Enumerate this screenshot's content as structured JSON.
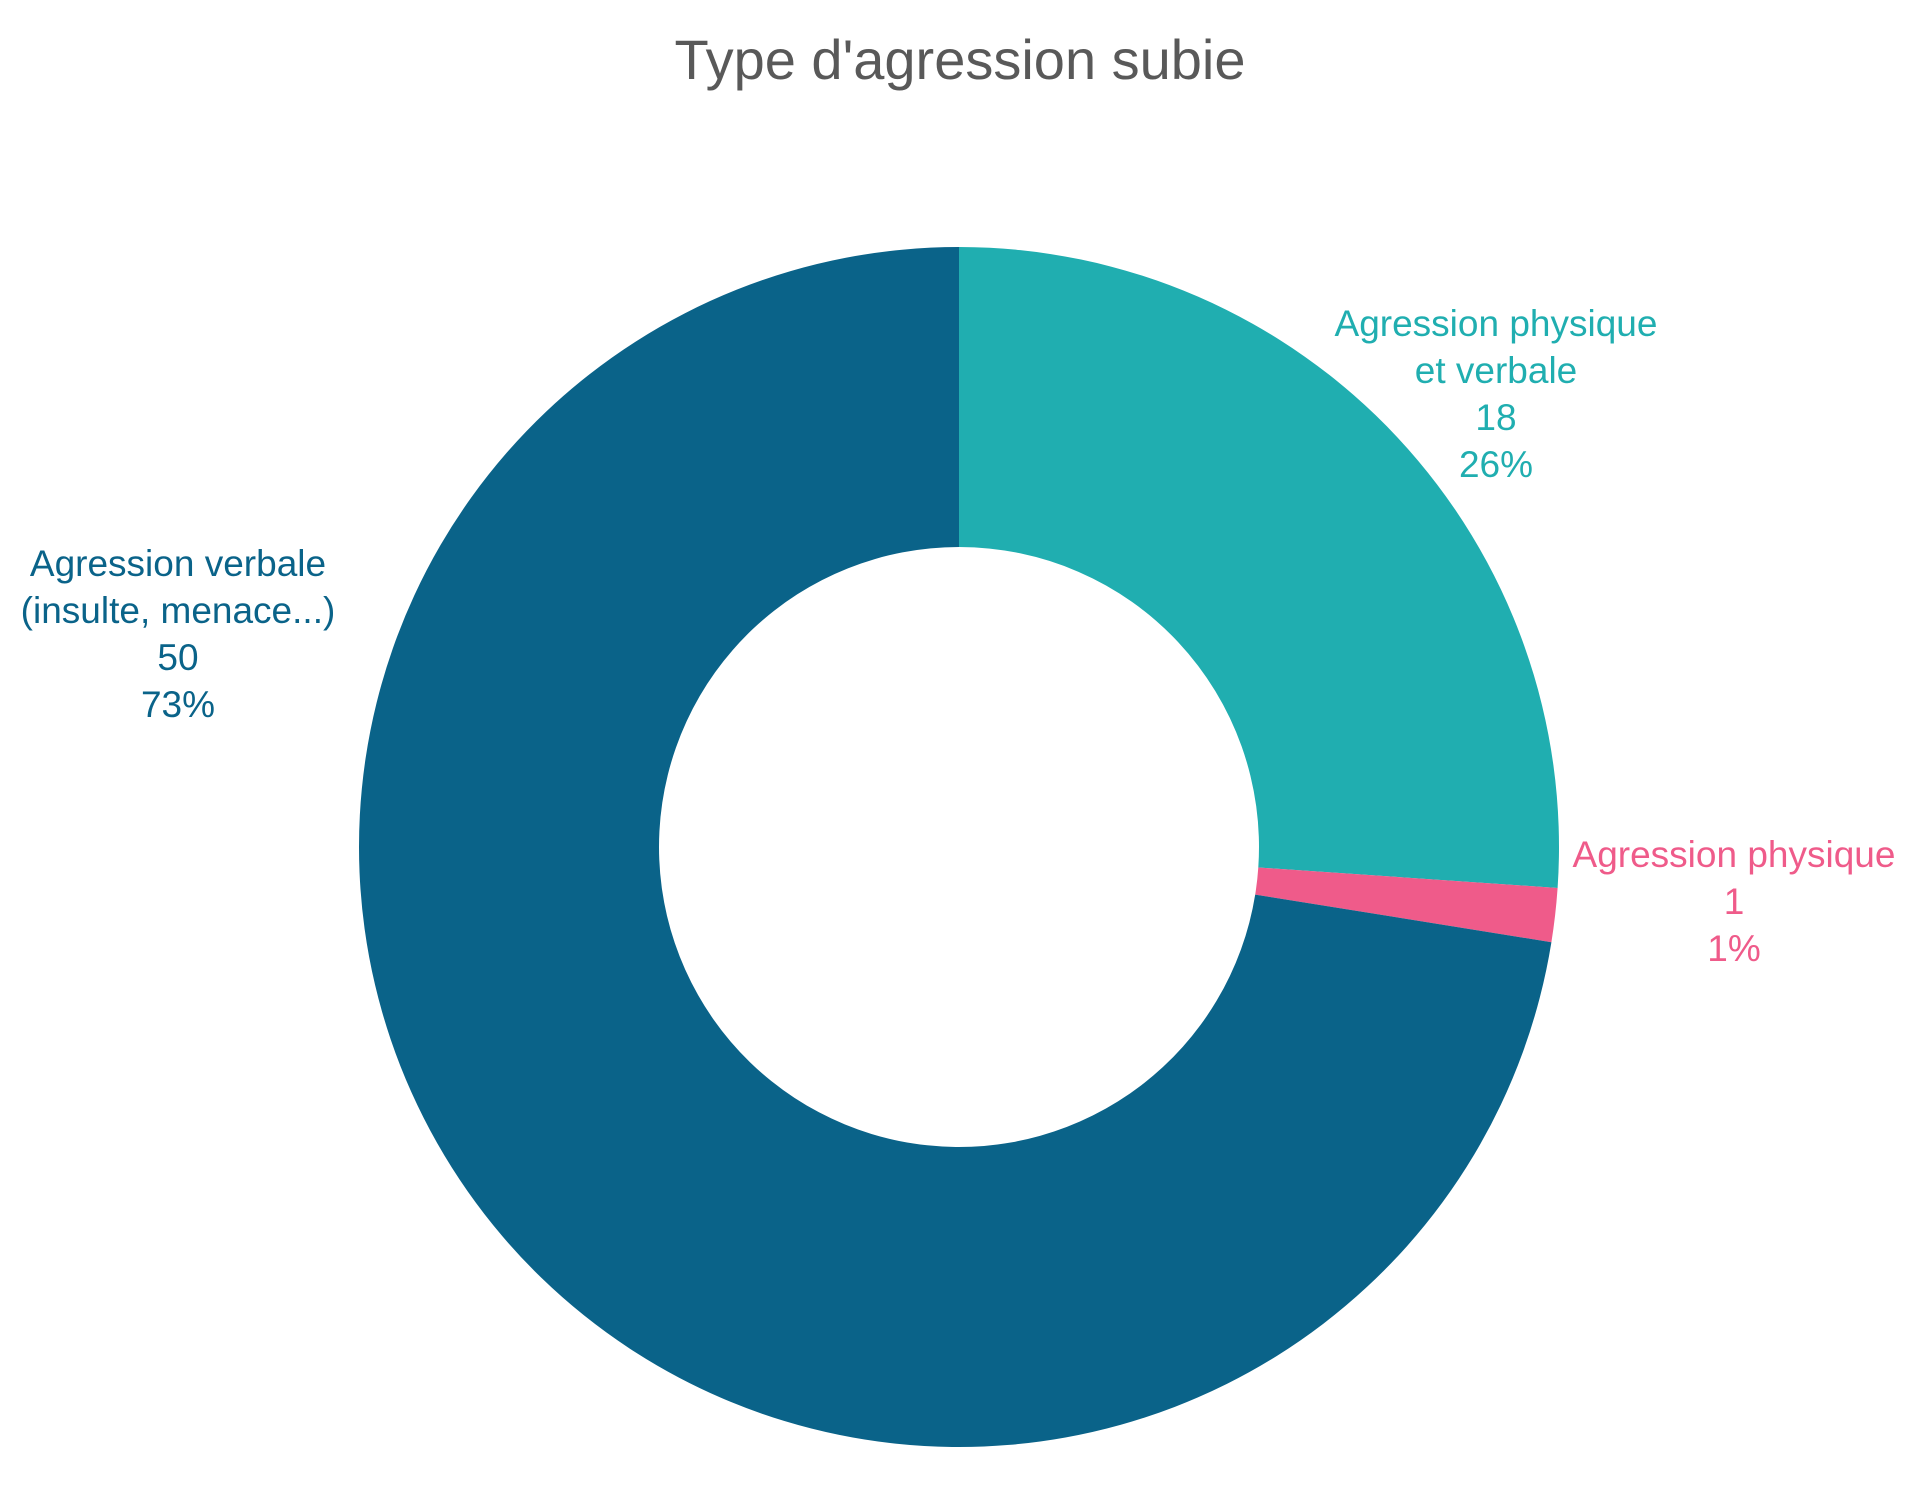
{
  "chart_data": {
    "type": "donut",
    "title": "Type d'agression subie",
    "categories": [
      [
        "Agression physique",
        "et verbale"
      ],
      [
        "Agression physique"
      ],
      [
        "Agression verbale",
        "(insulte, menace...)"
      ]
    ],
    "values": [
      18,
      1,
      50
    ],
    "percent_labels": [
      "26%",
      "1%",
      "73%"
    ],
    "colors": [
      "#20aeb0",
      "#ef5b8a",
      "#0a6389"
    ]
  }
}
